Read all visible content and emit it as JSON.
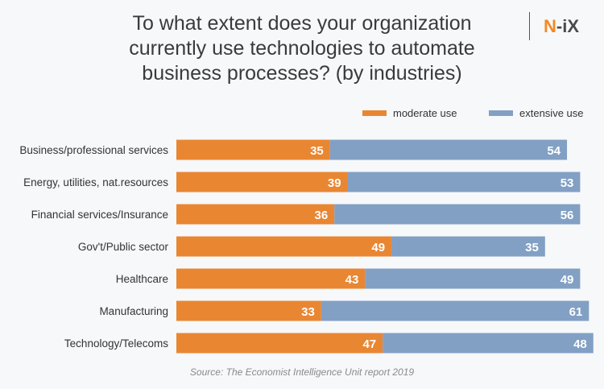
{
  "logo_text": "N-iX",
  "chart_data": {
    "type": "bar",
    "orientation": "horizontal",
    "stacked": true,
    "title": "To what extent does your organization currently use technologies to automate business processes? (by industries)",
    "categories": [
      "Business/professional services",
      "Energy, utilities, nat.resources",
      "Financial services/Insurance",
      "Gov't/Public sector",
      "Healthcare",
      "Manufacturing",
      "Technology/Telecoms"
    ],
    "series": [
      {
        "name": "moderate use",
        "color": "#e98632",
        "values": [
          35,
          39,
          36,
          49,
          43,
          33,
          47
        ]
      },
      {
        "name": "extensive use",
        "color": "#82a0c4",
        "values": [
          54,
          53,
          56,
          35,
          49,
          61,
          48
        ]
      }
    ],
    "legend_position": "top-right",
    "grid": false,
    "source": "Source: The Economist Intelligence Unit report 2019"
  }
}
